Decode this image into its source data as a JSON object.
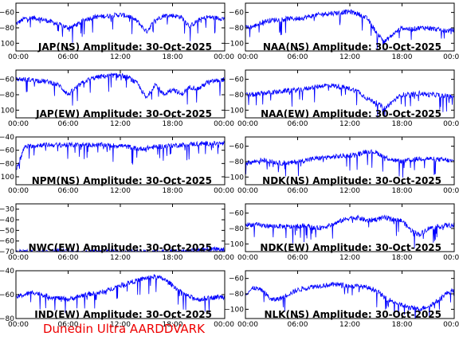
{
  "footer": "Dunedin Ultra AARDDVARK",
  "colors": {
    "trace": "#0000ff",
    "frame": "#000000",
    "footer": "#ee0000"
  },
  "x_tick_labels": [
    "00:00",
    "06:00",
    "12:00",
    "18:00",
    "00:00"
  ],
  "chart_data": [
    {
      "type": "line",
      "title": "JAP(NS) Amplitude: 30-Oct-2025",
      "xlim": [
        0,
        24
      ],
      "ylim": [
        -110,
        -48
      ],
      "yticks": [
        -60,
        -80,
        -100
      ],
      "yticklabels": [
        "−60",
        "−80",
        "−100"
      ],
      "x": [
        0,
        1,
        2,
        3,
        4,
        5,
        6,
        7,
        8,
        9,
        10,
        11,
        12,
        13,
        14,
        15,
        16,
        17,
        18,
        19,
        20,
        21,
        22,
        23,
        24
      ],
      "values": [
        -75,
        -68,
        -67,
        -69,
        -72,
        -76,
        -80,
        -76,
        -69,
        -66,
        -65,
        -64,
        -63,
        -65,
        -72,
        -85,
        -70,
        -64,
        -64,
        -66,
        -78,
        -70,
        -66,
        -67,
        -68
      ]
    },
    {
      "type": "line",
      "title": "NAA(NS) Amplitude: 30-Oct-2025",
      "xlim": [
        0,
        24
      ],
      "ylim": [
        -110,
        -48
      ],
      "yticks": [
        -60,
        -80,
        -100
      ],
      "yticklabels": [
        "−60",
        "−80",
        "−100"
      ],
      "x": [
        0,
        1,
        2,
        3,
        4,
        5,
        6,
        7,
        8,
        9,
        10,
        11,
        12,
        13,
        14,
        15,
        16,
        17,
        18,
        19,
        20,
        21,
        22,
        23,
        24
      ],
      "values": [
        -80,
        -78,
        -72,
        -70,
        -69,
        -68,
        -68,
        -66,
        -64,
        -62,
        -61,
        -60,
        -59,
        -62,
        -68,
        -85,
        -98,
        -88,
        -80,
        -82,
        -80,
        -80,
        -82,
        -84,
        -83
      ]
    },
    {
      "type": "line",
      "title": "JAP(EW) Amplitude: 30-Oct-2025",
      "xlim": [
        0,
        24
      ],
      "ylim": [
        -110,
        -48
      ],
      "yticks": [
        -60,
        -80,
        -100
      ],
      "yticklabels": [
        "−60",
        "−80",
        "−100"
      ],
      "x": [
        0,
        1,
        2,
        3,
        4,
        5,
        6,
        7,
        8,
        9,
        10,
        11,
        12,
        13,
        14,
        15,
        16,
        17,
        18,
        19,
        20,
        21,
        22,
        23,
        24
      ],
      "values": [
        -60,
        -60,
        -61,
        -62,
        -64,
        -68,
        -80,
        -70,
        -62,
        -58,
        -56,
        -55,
        -55,
        -58,
        -66,
        -85,
        -66,
        -80,
        -72,
        -80,
        -70,
        -72,
        -64,
        -62,
        -60
      ]
    },
    {
      "type": "line",
      "title": "NAA(EW) Amplitude: 30-Oct-2025",
      "xlim": [
        0,
        24
      ],
      "ylim": [
        -110,
        -48
      ],
      "yticks": [
        -60,
        -80,
        -100
      ],
      "yticklabels": [
        "−60",
        "−80",
        "−100"
      ],
      "x": [
        0,
        1,
        2,
        3,
        4,
        5,
        6,
        7,
        8,
        9,
        10,
        11,
        12,
        13,
        14,
        15,
        16,
        17,
        18,
        19,
        20,
        21,
        22,
        23,
        24
      ],
      "values": [
        -80,
        -80,
        -78,
        -77,
        -76,
        -74,
        -74,
        -72,
        -70,
        -68,
        -68,
        -70,
        -72,
        -76,
        -85,
        -90,
        -98,
        -88,
        -80,
        -80,
        -78,
        -80,
        -80,
        -82,
        -82
      ]
    },
    {
      "type": "line",
      "title": "NPM(NS) Amplitude: 30-Oct-2025",
      "xlim": [
        0,
        24
      ],
      "ylim": [
        -112,
        -40
      ],
      "yticks": [
        -40,
        -60,
        -80,
        -100
      ],
      "yticklabels": [
        "−40",
        "−60",
        "−80",
        "−100"
      ],
      "x": [
        0,
        1,
        2,
        3,
        4,
        5,
        6,
        7,
        8,
        9,
        10,
        11,
        12,
        13,
        14,
        15,
        16,
        17,
        18,
        19,
        20,
        21,
        22,
        23,
        24
      ],
      "values": [
        -90,
        -55,
        -53,
        -52,
        -52,
        -52,
        -52,
        -52,
        -52,
        -52,
        -52,
        -53,
        -53,
        -55,
        -58,
        -57,
        -55,
        -54,
        -53,
        -52,
        -51,
        -50,
        -50,
        -50,
        -50
      ]
    },
    {
      "type": "line",
      "title": "NDK(NS) Amplitude: 30-Oct-2025",
      "xlim": [
        0,
        24
      ],
      "ylim": [
        -110,
        -48
      ],
      "yticks": [
        -60,
        -80,
        -100
      ],
      "yticklabels": [
        "−60",
        "−80",
        "−100"
      ],
      "x": [
        0,
        1,
        2,
        3,
        4,
        5,
        6,
        7,
        8,
        9,
        10,
        11,
        12,
        13,
        14,
        15,
        16,
        17,
        18,
        19,
        20,
        21,
        22,
        23,
        24
      ],
      "values": [
        -82,
        -80,
        -78,
        -80,
        -82,
        -82,
        -80,
        -78,
        -76,
        -75,
        -74,
        -73,
        -72,
        -70,
        -66,
        -68,
        -74,
        -78,
        -80,
        -78,
        -76,
        -76,
        -77,
        -78,
        -80
      ]
    },
    {
      "type": "line",
      "title": "NWC(EW) Amplitude: 30-Oct-2025",
      "xlim": [
        0,
        24
      ],
      "ylim": [
        -70,
        -25
      ],
      "yticks": [
        -30,
        -40,
        -50,
        -60,
        -70
      ],
      "yticklabels": [
        "−30",
        "−40",
        "−50",
        "−60",
        "−70"
      ],
      "x": [
        0,
        1,
        2,
        3,
        4,
        5,
        6,
        7,
        8,
        9,
        10,
        11,
        12,
        13,
        14,
        15,
        16,
        17,
        18,
        19,
        20,
        21,
        22,
        23,
        24
      ],
      "values": [
        -70,
        -70,
        -70,
        -70,
        -70,
        -69,
        -70,
        -70,
        -70,
        -70,
        -70,
        -70,
        -70,
        -70,
        -70,
        -70,
        -70,
        -70,
        -70,
        -70,
        -69,
        -68,
        -68,
        -68,
        -68
      ]
    },
    {
      "type": "line",
      "title": "NDK(EW) Amplitude: 30-Oct-2025",
      "xlim": [
        0,
        24
      ],
      "ylim": [
        -110,
        -48
      ],
      "yticks": [
        -60,
        -80,
        -100
      ],
      "yticklabels": [
        "−60",
        "−80",
        "−100"
      ],
      "x": [
        0,
        1,
        2,
        3,
        4,
        5,
        6,
        7,
        8,
        9,
        10,
        11,
        12,
        13,
        14,
        15,
        16,
        17,
        18,
        19,
        20,
        21,
        22,
        23,
        24
      ],
      "values": [
        -75,
        -75,
        -76,
        -77,
        -77,
        -78,
        -77,
        -76,
        -80,
        -78,
        -75,
        -70,
        -66,
        -66,
        -70,
        -68,
        -66,
        -68,
        -70,
        -82,
        -88,
        -80,
        -78,
        -76,
        -76
      ]
    },
    {
      "type": "line",
      "title": "IND(EW) Amplitude: 30-Oct-2025",
      "xlim": [
        0,
        24
      ],
      "ylim": [
        -80,
        -40
      ],
      "yticks": [
        -40,
        -60,
        -80
      ],
      "yticklabels": [
        "−40",
        "−60",
        "−80"
      ],
      "x": [
        0,
        1,
        2,
        3,
        4,
        5,
        6,
        7,
        8,
        9,
        10,
        11,
        12,
        13,
        14,
        15,
        16,
        17,
        18,
        19,
        20,
        21,
        22,
        23,
        24
      ],
      "values": [
        -62,
        -60,
        -58,
        -60,
        -62,
        -63,
        -64,
        -62,
        -60,
        -59,
        -58,
        -55,
        -52,
        -50,
        -48,
        -46,
        -45,
        -47,
        -52,
        -58,
        -62,
        -64,
        -63,
        -62,
        -62
      ]
    },
    {
      "type": "line",
      "title": "NLK(NS) Amplitude: 30-Oct-2025",
      "xlim": [
        0,
        24
      ],
      "ylim": [
        -112,
        -50
      ],
      "yticks": [
        -60,
        -80,
        -100
      ],
      "yticklabels": [
        "−60",
        "−80",
        "−100"
      ],
      "x": [
        0,
        1,
        2,
        3,
        4,
        5,
        6,
        7,
        8,
        9,
        10,
        11,
        12,
        13,
        14,
        15,
        16,
        17,
        18,
        19,
        20,
        21,
        22,
        23,
        24
      ],
      "values": [
        -80,
        -72,
        -76,
        -88,
        -86,
        -80,
        -75,
        -72,
        -70,
        -69,
        -68,
        -68,
        -70,
        -70,
        -72,
        -75,
        -85,
        -90,
        -95,
        -98,
        -100,
        -96,
        -90,
        -80,
        -75
      ]
    }
  ]
}
